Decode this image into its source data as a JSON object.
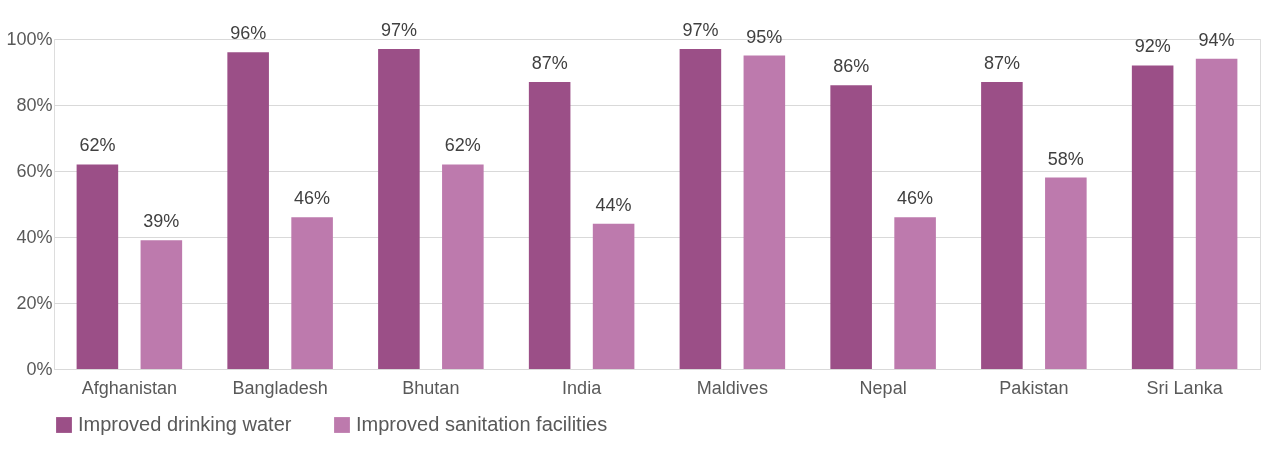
{
  "chart_data": {
    "type": "bar",
    "categories": [
      "Afghanistan",
      "Bangladesh",
      "Bhutan",
      "India",
      "Maldives",
      "Nepal",
      "Pakistan",
      "Sri Lanka"
    ],
    "series": [
      {
        "name": "Improved drinking water",
        "color": "#9b4f87",
        "values": [
          62,
          96,
          97,
          87,
          97,
          86,
          87,
          92
        ],
        "value_labels": [
          "62%",
          "96%",
          "97%",
          "87%",
          "97%",
          "86%",
          "87%",
          "92%"
        ]
      },
      {
        "name": "Improved sanitation facilities",
        "color": "#bd7aad",
        "values": [
          39,
          46,
          62,
          44,
          95,
          46,
          58,
          94
        ],
        "value_labels": [
          "39%",
          "46%",
          "62%",
          "44%",
          "95%",
          "46%",
          "58%",
          "94%"
        ]
      }
    ],
    "ylim": [
      0,
      100
    ],
    "yticks": [
      {
        "value": 0,
        "label": "0%"
      },
      {
        "value": 20,
        "label": "20%"
      },
      {
        "value": 40,
        "label": "40%"
      },
      {
        "value": 60,
        "label": "60%"
      },
      {
        "value": 80,
        "label": "80%"
      },
      {
        "value": 100,
        "label": "100%"
      }
    ],
    "grid": "y",
    "legend": "bottom"
  }
}
